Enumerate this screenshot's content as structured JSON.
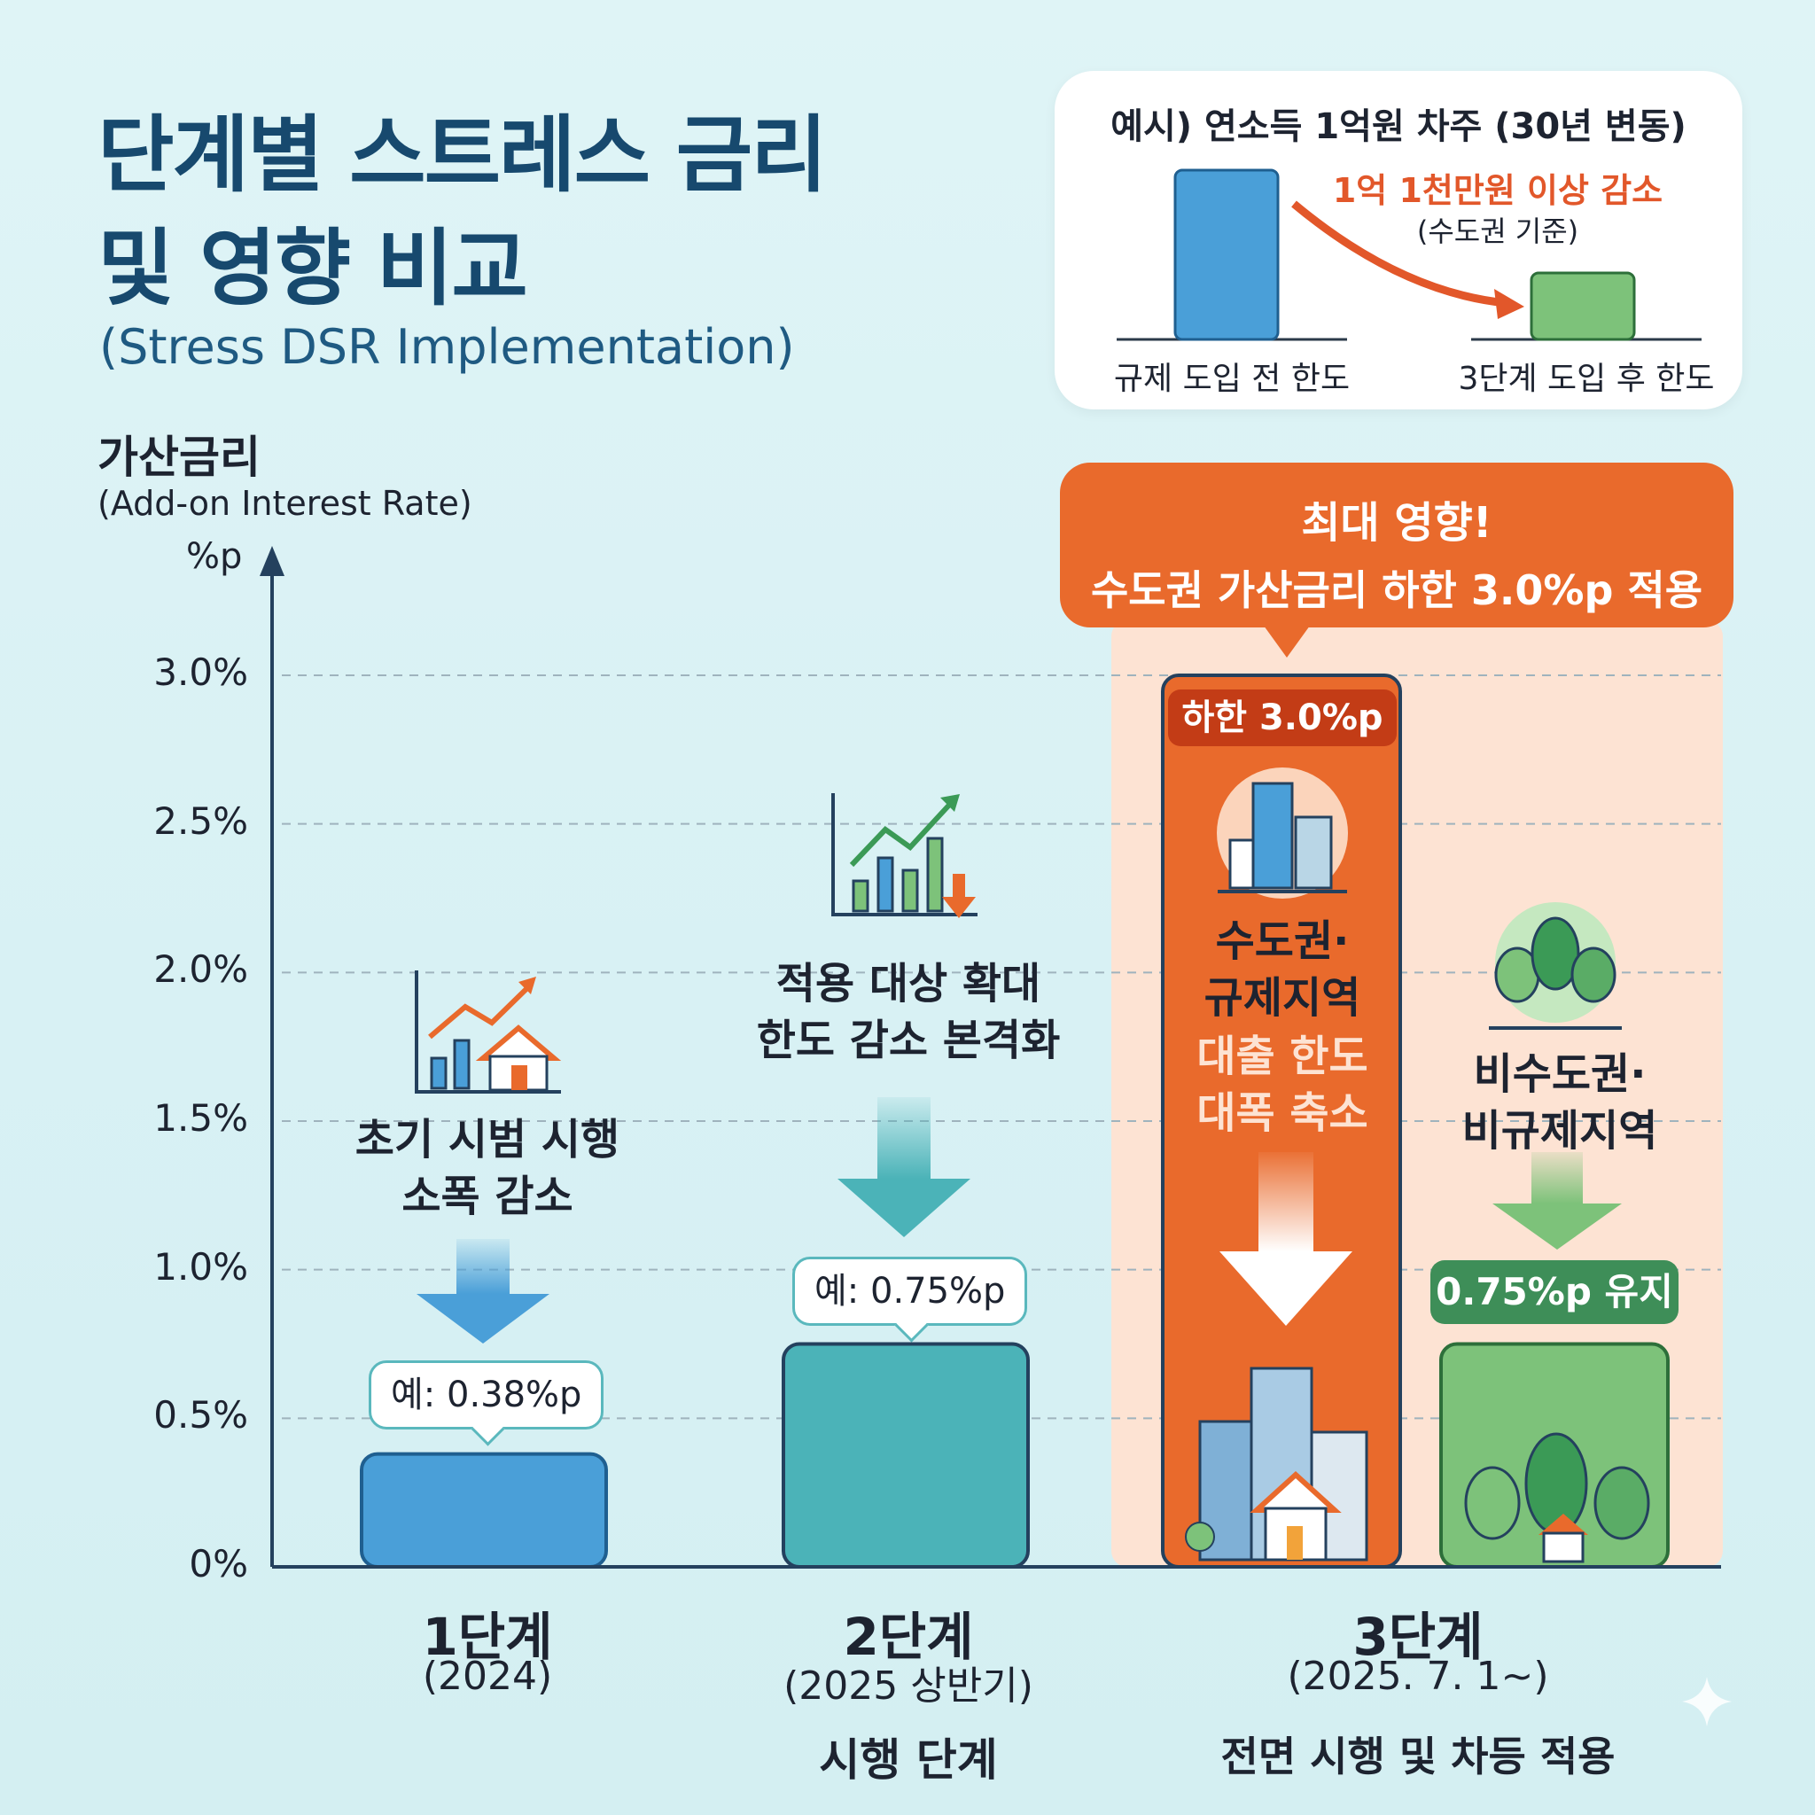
{
  "header": {
    "title_line1": "단계별 스트레스 금리",
    "title_line2": "및 영향 비교",
    "subtitle": "(Stress DSR Implementation)"
  },
  "axis": {
    "ylabel_ko": "가산금리",
    "ylabel_en": "(Add-on Interest Rate)",
    "yunit": "%p",
    "ticks": [
      "0%",
      "0.5%",
      "1.0%",
      "1.5%",
      "2.0%",
      "2.5%",
      "3.0%"
    ]
  },
  "example": {
    "title": "예시) 연소득 1억원 차주 (30년 변동)",
    "reduction": "1억 1천만원 이상 감소",
    "reduction_note": "(수도권 기준)",
    "before_label": "규제 도입 전 한도",
    "after_label": "3단계 도입 후 한도"
  },
  "callout": {
    "line1": "최대 영향!",
    "line2": "수도권 가산금리 하한 3.0%p 적용"
  },
  "stages": {
    "s1": {
      "desc1": "초기 시범 시행",
      "desc2": "소폭 감소",
      "bubble": "예: 0.38%p",
      "name": "1단계",
      "period": "(2024)"
    },
    "s2": {
      "desc1": "적용 대상 확대",
      "desc2": "한도 감소 본격화",
      "bubble": "예: 0.75%p",
      "name": "2단계",
      "period": "(2025 상반기)",
      "note": "시행 단계"
    },
    "s3": {
      "name": "3단계",
      "period": "(2025. 7. 1~)",
      "note": "전면 시행 및 차등 적용"
    },
    "capital": {
      "badge": "하한 3.0%p",
      "region1": "수도권·",
      "region2": "규제지역",
      "effect1": "대출 한도",
      "effect2": "대폭 축소"
    },
    "noncapital": {
      "region1": "비수도권·",
      "region2": "비규제지역",
      "badge": "0.75%p 유지"
    }
  },
  "colors": {
    "stage1": "#4a9fd8",
    "stage2": "#4bb3b8",
    "capital": "#e96a2c",
    "noncapital": "#7dc27a",
    "title": "#17496e",
    "accent": "#e96a2c",
    "highlight_bg": "#fde3d3"
  },
  "chart_data": {
    "type": "bar",
    "categories": [
      "1단계",
      "2단계",
      "3단계 수도권·규제지역",
      "3단계 비수도권·비규제지역"
    ],
    "values": [
      0.38,
      0.75,
      3.0,
      0.75
    ],
    "ylabel": "가산금리 (Add-on Interest Rate) %p",
    "ylim": [
      0,
      3.0
    ],
    "ticks": [
      0,
      0.5,
      1.0,
      1.5,
      2.0,
      2.5,
      3.0
    ],
    "grid": true
  }
}
